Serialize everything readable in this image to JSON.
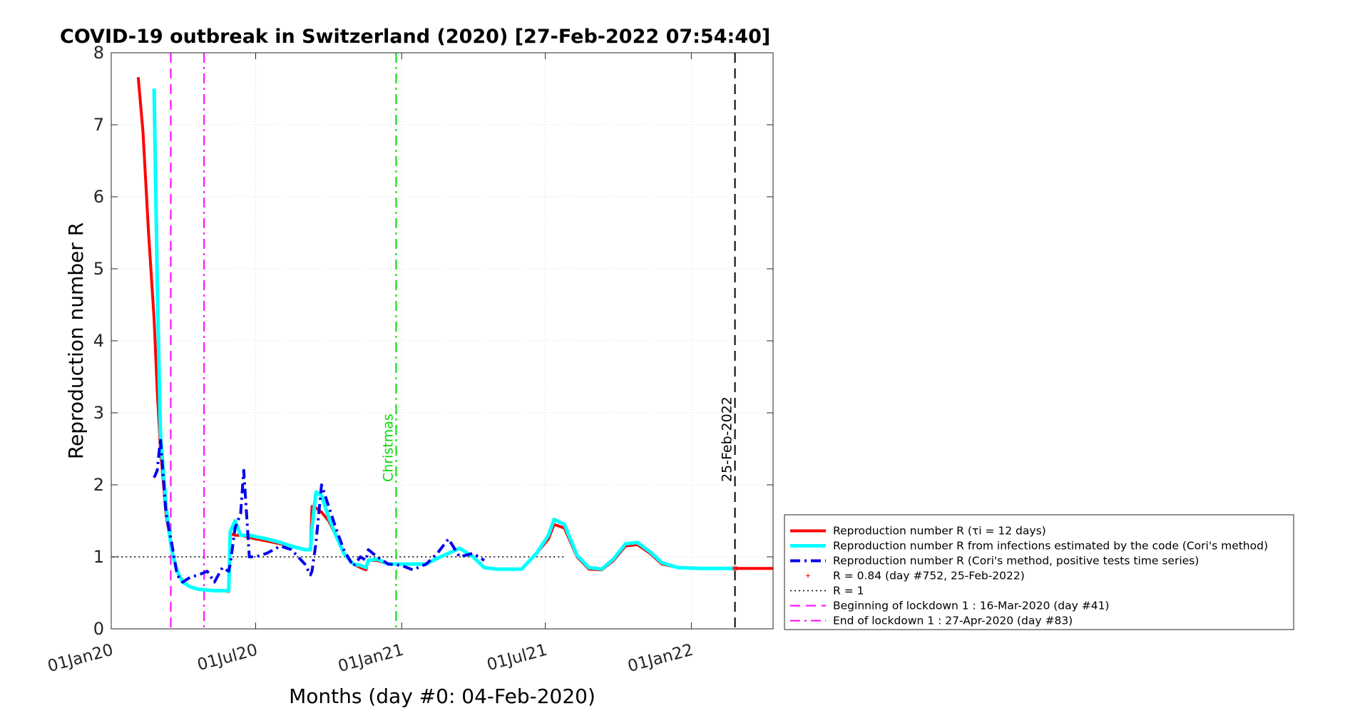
{
  "chart_data": {
    "type": "line",
    "title": "COVID-19 outbreak in Switzerland (2020) [27-Feb-2022 07:54:40]",
    "x_label": "Months (day #0: 04-Feb-2020)",
    "y_label": "Reproduction number R",
    "x": [
      "2020-02-04",
      "2020-02-10",
      "2020-02-17",
      "2020-02-24",
      "2020-02-28",
      "2020-03-03",
      "2020-03-10",
      "2020-03-17",
      "2020-03-24",
      "2020-03-31",
      "2020-04-10",
      "2020-04-20",
      "2020-05-01",
      "2020-05-10",
      "2020-05-20",
      "2020-05-28",
      "2020-05-30",
      "2020-06-05",
      "2020-06-12",
      "2020-06-16",
      "2020-06-23",
      "2020-07-01",
      "2020-07-15",
      "2020-08-01",
      "2020-08-15",
      "2020-09-01",
      "2020-09-08",
      "2020-09-10",
      "2020-09-15",
      "2020-09-22",
      "2020-10-01",
      "2020-10-10",
      "2020-10-20",
      "2020-11-01",
      "2020-11-10",
      "2020-11-17",
      "2020-11-20",
      "2020-12-01",
      "2020-12-15",
      "2021-01-01",
      "2021-01-15",
      "2021-02-01",
      "2021-02-15",
      "2021-03-01",
      "2021-03-15",
      "2021-04-01",
      "2021-04-15",
      "2021-05-01",
      "2021-06-01",
      "2021-06-20",
      "2021-07-05",
      "2021-07-12",
      "2021-07-25",
      "2021-08-10",
      "2021-08-25",
      "2021-09-10",
      "2021-09-25",
      "2021-10-10",
      "2021-10-25",
      "2021-11-10",
      "2021-11-25",
      "2021-12-15",
      "2022-01-15",
      "2022-02-25",
      "2022-04-14"
    ],
    "series": [
      {
        "name": "Reproduction number R (τi = 12 days)",
        "color": "#ff0000",
        "width": 4,
        "dash": "solid",
        "values": [
          7.66,
          6.9,
          5.5,
          4.3,
          3.3,
          2.5,
          1.6,
          1.1,
          0.8,
          0.65,
          0.58,
          0.55,
          0.54,
          0.53,
          0.53,
          0.52,
          1.32,
          1.3,
          1.3,
          1.29,
          1.27,
          1.25,
          1.22,
          1.18,
          1.15,
          1.1,
          1.1,
          1.7,
          1.68,
          1.62,
          1.5,
          1.3,
          1.05,
          0.9,
          0.85,
          0.82,
          0.95,
          0.95,
          0.9,
          0.9,
          0.9,
          0.9,
          0.98,
          1.05,
          1.12,
          1.0,
          0.85,
          0.83,
          0.83,
          1.05,
          1.25,
          1.45,
          1.4,
          1.0,
          0.83,
          0.82,
          0.95,
          1.15,
          1.17,
          1.05,
          0.9,
          0.85,
          0.84,
          0.84,
          0.84
        ]
      },
      {
        "name": "Reproduction number R from infections estimated by the code (Cori's method)",
        "color": "#00ffff",
        "width": 5,
        "dash": "solid",
        "values": [
          null,
          null,
          null,
          7.5,
          4.8,
          2.7,
          1.7,
          1.1,
          0.8,
          0.65,
          0.58,
          0.55,
          0.54,
          0.53,
          0.53,
          0.53,
          1.35,
          1.5,
          1.3,
          1.3,
          1.3,
          1.28,
          1.25,
          1.2,
          1.15,
          1.1,
          1.1,
          1.4,
          1.9,
          1.85,
          1.55,
          1.3,
          1.05,
          0.9,
          0.88,
          0.85,
          0.95,
          0.97,
          0.9,
          0.9,
          0.9,
          0.9,
          0.98,
          1.05,
          1.12,
          1.0,
          0.85,
          0.83,
          0.83,
          1.05,
          1.3,
          1.52,
          1.45,
          1.02,
          0.85,
          0.83,
          0.97,
          1.18,
          1.2,
          1.07,
          0.92,
          0.85,
          0.84,
          0.84,
          null
        ]
      },
      {
        "name": "Reproduction number R (Cori's method, positive tests time series)",
        "color": "#0000ee",
        "width": 4,
        "dash": "dashdot",
        "values": [
          null,
          null,
          null,
          2.1,
          2.2,
          2.65,
          1.6,
          1.2,
          0.75,
          0.65,
          0.72,
          0.75,
          0.8,
          0.65,
          0.85,
          0.8,
          0.9,
          1.4,
          1.6,
          2.2,
          1.0,
          1.0,
          1.05,
          1.15,
          1.1,
          0.9,
          0.75,
          0.8,
          1.2,
          2.0,
          1.7,
          1.4,
          1.1,
          0.87,
          1.0,
          0.95,
          1.1,
          1.0,
          0.9,
          0.88,
          0.82,
          0.9,
          1.05,
          1.25,
          1.0,
          1.05,
          0.95,
          null,
          null,
          null,
          null,
          null,
          null,
          null,
          null,
          null,
          null,
          null,
          null,
          null,
          null,
          null,
          null,
          null,
          null
        ]
      }
    ],
    "point": {
      "name": "R = 0.84 (day #752, 25-Feb-2022)",
      "x": "2022-02-25",
      "value": 0.84,
      "color": "#ff0000"
    },
    "hlines": [
      {
        "name": "R = 1",
        "value": 1,
        "x": [
          "2020-01-03",
          "2021-07-25"
        ],
        "color": "#000000",
        "dash": "dot"
      }
    ],
    "vlines": [
      {
        "name": "Beginning of lockdown 1 : 16-Mar-2020 (day #41)",
        "x": "2020-03-16",
        "color": "#ff00ff",
        "dash": "dash"
      },
      {
        "name": "End of lockdown 1 : 27-Apr-2020 (day #83)",
        "x": "2020-04-27",
        "color": "#ff00ff",
        "dash": "dashdot"
      },
      {
        "label": "Christmas",
        "x": "2020-12-25",
        "color": "#00dd00",
        "dash": "dashdot"
      },
      {
        "label": "25-Feb-2022",
        "x": "2022-02-25",
        "color": "#000000",
        "dash": "dash"
      }
    ],
    "xlim": [
      "2020-01-01",
      "2022-04-14"
    ],
    "xticks": [
      {
        "value": "2020-01-01",
        "label": "01Jan20"
      },
      {
        "value": "2020-07-01",
        "label": "01Jul20"
      },
      {
        "value": "2021-01-01",
        "label": "01Jan21"
      },
      {
        "value": "2021-07-01",
        "label": "01Jul21"
      },
      {
        "value": "2022-01-01",
        "label": "01Jan22"
      }
    ],
    "ylim": [
      0,
      8
    ],
    "yticks": [
      0,
      1,
      2,
      3,
      4,
      5,
      6,
      7,
      8
    ],
    "grid": true,
    "legend": "bottom-right-outside"
  }
}
